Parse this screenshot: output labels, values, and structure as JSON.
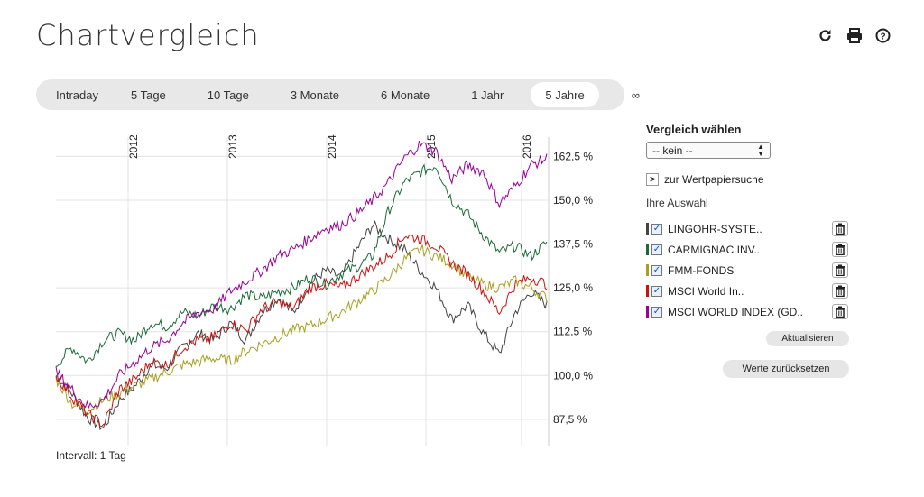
{
  "page": {
    "title": "Chartvergleich"
  },
  "toolbar": {
    "icons": [
      "refresh-icon",
      "print-icon",
      "help-icon"
    ]
  },
  "ranges": [
    "Intraday",
    "5 Tage",
    "10 Tage",
    "3 Monate",
    "6 Monate",
    "1 Jahr",
    "5 Jahre",
    "∞"
  ],
  "active_range": "5 Jahre",
  "chart_data": {
    "type": "line",
    "x_tick_labels": [
      "2012",
      "2013",
      "2014",
      "2015",
      "2016"
    ],
    "y_tick_labels": [
      "162,5 %",
      "150,0 %",
      "137,5 %",
      "125,0 %",
      "112,5 %",
      "100,0 %",
      "87,5 %"
    ],
    "ylim": [
      80,
      168
    ],
    "grid": true,
    "series": [
      {
        "name": "LINGOHR-SYSTE..",
        "color": "#444444",
        "values": [
          100,
          95,
          88,
          85,
          93,
          97,
          103,
          102,
          108,
          112,
          110,
          115,
          110,
          118,
          122,
          118,
          126,
          130,
          128,
          136,
          143,
          139,
          136,
          130,
          125,
          116,
          120,
          112,
          106,
          118,
          124,
          120
        ]
      },
      {
        "name": "CARMIGNAC INV..",
        "color": "#1a6b38",
        "values": [
          103,
          108,
          104,
          110,
          112,
          110,
          115,
          114,
          118,
          117,
          120,
          119,
          123,
          122,
          124,
          125,
          128,
          126,
          129,
          131,
          134,
          147,
          155,
          158,
          160,
          150,
          146,
          140,
          135,
          137,
          134,
          138
        ]
      },
      {
        "name": "FMM-FONDS",
        "color": "#a8a020",
        "values": [
          99,
          92,
          90,
          93,
          95,
          97,
          99,
          101,
          103,
          104,
          105,
          104,
          107,
          109,
          111,
          113,
          114,
          116,
          118,
          121,
          124,
          128,
          133,
          136,
          134,
          132,
          128,
          126,
          125,
          127,
          125,
          122
        ]
      },
      {
        "name": "MSCI World In..",
        "color": "#cc1111",
        "values": [
          100,
          94,
          89,
          86,
          96,
          99,
          104,
          103,
          108,
          110,
          111,
          115,
          113,
          119,
          121,
          119,
          125,
          126,
          125,
          128,
          131,
          134,
          140,
          139,
          137,
          132,
          129,
          124,
          118,
          126,
          128,
          126
        ]
      },
      {
        "name": "MSCI WORLD INDEX (GD..",
        "color": "#990099",
        "values": [
          101,
          96,
          91,
          93,
          100,
          104,
          108,
          110,
          115,
          118,
          119,
          124,
          127,
          130,
          134,
          136,
          139,
          142,
          143,
          146,
          150,
          155,
          162,
          166,
          164,
          156,
          160,
          158,
          149,
          154,
          160,
          162
        ]
      }
    ]
  },
  "interval_label": "Intervall: 1 Tag",
  "sidebar": {
    "compare_heading": "Vergleich wählen",
    "select_value": "-- kein --",
    "search_link": "zur Wertpapiersuche",
    "selection_label": "Ihre Auswahl",
    "update_button": "Aktualisieren",
    "reset_button": "Werte zurücksetzen"
  }
}
